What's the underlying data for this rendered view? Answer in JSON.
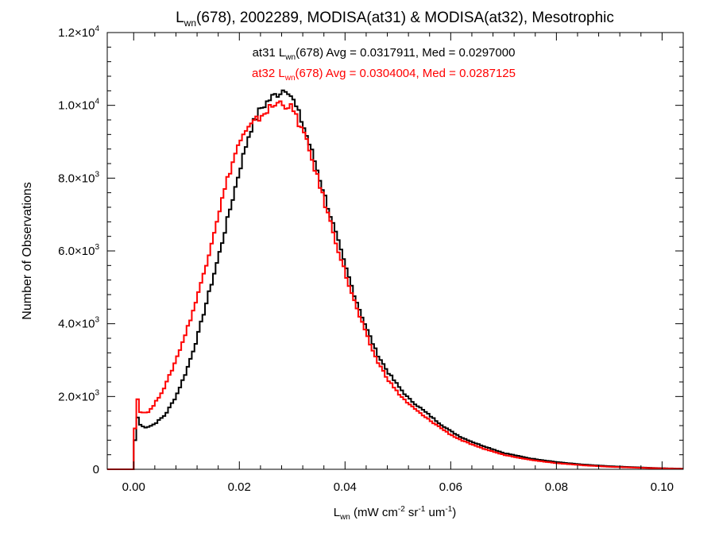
{
  "chart_data": {
    "type": "line",
    "title": {
      "prefix": "L",
      "sub": "wn",
      "rest": "(678), 2002289, MODISA(at31) & MODISA(at32), Mesotrophic"
    },
    "xlabel": {
      "prefix": "L",
      "sub": "wn",
      "rest": " (mW cm",
      "sup1": "-2",
      "mid": " sr",
      "sup2": "-1",
      "end": " um",
      "sup3": "-1",
      "close": ")"
    },
    "ylabel": "Number of Observations",
    "xlim": [
      -0.005,
      0.104
    ],
    "ylim": [
      0,
      12000
    ],
    "xticks": [
      {
        "value": 0.0,
        "label": "0.00"
      },
      {
        "value": 0.02,
        "label": "0.02"
      },
      {
        "value": 0.04,
        "label": "0.04"
      },
      {
        "value": 0.06,
        "label": "0.06"
      },
      {
        "value": 0.08,
        "label": "0.08"
      },
      {
        "value": 0.1,
        "label": "0.10"
      }
    ],
    "yticks": [
      {
        "value": 0,
        "mant": "0",
        "exp": ""
      },
      {
        "value": 2000,
        "mant": "2.0×10",
        "exp": "3"
      },
      {
        "value": 4000,
        "mant": "4.0×10",
        "exp": "3"
      },
      {
        "value": 6000,
        "mant": "6.0×10",
        "exp": "3"
      },
      {
        "value": 8000,
        "mant": "8.0×10",
        "exp": "3"
      },
      {
        "value": 10000,
        "mant": "1.0×10",
        "exp": "4"
      },
      {
        "value": 12000,
        "mant": "1.2×10",
        "exp": "4"
      }
    ],
    "annotations": [
      {
        "pre": "at31 L",
        "sub": "wn",
        "post": "(678) Avg = 0.0317911, Med = 0.0297000",
        "color": "#000000"
      },
      {
        "pre": "at32 L",
        "sub": "wn",
        "post": "(678) Avg = 0.0304004, Med = 0.0287125",
        "color": "#ff0000"
      }
    ],
    "series": [
      {
        "name": "at31",
        "color": "#000000",
        "x": [
          -0.005,
          0.0,
          0.0005,
          0.001,
          0.002,
          0.003,
          0.004,
          0.006,
          0.008,
          0.01,
          0.012,
          0.014,
          0.016,
          0.018,
          0.02,
          0.022,
          0.024,
          0.026,
          0.028,
          0.029,
          0.03,
          0.032,
          0.034,
          0.036,
          0.038,
          0.04,
          0.042,
          0.044,
          0.046,
          0.048,
          0.05,
          0.052,
          0.055,
          0.058,
          0.06,
          0.062,
          0.065,
          0.07,
          0.075,
          0.08,
          0.085,
          0.09,
          0.095,
          0.1,
          0.104
        ],
        "y": [
          0,
          0,
          1600,
          1250,
          1150,
          1180,
          1250,
          1500,
          2000,
          2700,
          3600,
          4700,
          5800,
          7000,
          8200,
          9300,
          9900,
          10200,
          10400,
          10500,
          10200,
          9500,
          8600,
          7600,
          6600,
          5600,
          4700,
          3900,
          3200,
          2700,
          2300,
          1950,
          1600,
          1250,
          1050,
          880,
          700,
          450,
          300,
          200,
          130,
          85,
          55,
          30,
          15
        ]
      },
      {
        "name": "at32",
        "color": "#ff0000",
        "x": [
          -0.005,
          0.0,
          0.0005,
          0.001,
          0.002,
          0.003,
          0.004,
          0.006,
          0.008,
          0.01,
          0.012,
          0.014,
          0.016,
          0.018,
          0.02,
          0.022,
          0.024,
          0.026,
          0.028,
          0.03,
          0.032,
          0.034,
          0.036,
          0.038,
          0.04,
          0.042,
          0.044,
          0.046,
          0.048,
          0.05,
          0.052,
          0.055,
          0.058,
          0.06,
          0.062,
          0.065,
          0.07,
          0.075,
          0.08,
          0.085,
          0.09,
          0.095,
          0.1,
          0.104
        ],
        "y": [
          0,
          0,
          2250,
          1600,
          1550,
          1600,
          1800,
          2300,
          3000,
          3800,
          4700,
          5800,
          7000,
          8100,
          9000,
          9400,
          9700,
          9950,
          10100,
          9900,
          9300,
          8400,
          7400,
          6400,
          5400,
          4500,
          3700,
          3000,
          2500,
          2100,
          1800,
          1450,
          1150,
          950,
          800,
          620,
          400,
          260,
          170,
          110,
          70,
          45,
          25,
          12
        ]
      }
    ]
  }
}
